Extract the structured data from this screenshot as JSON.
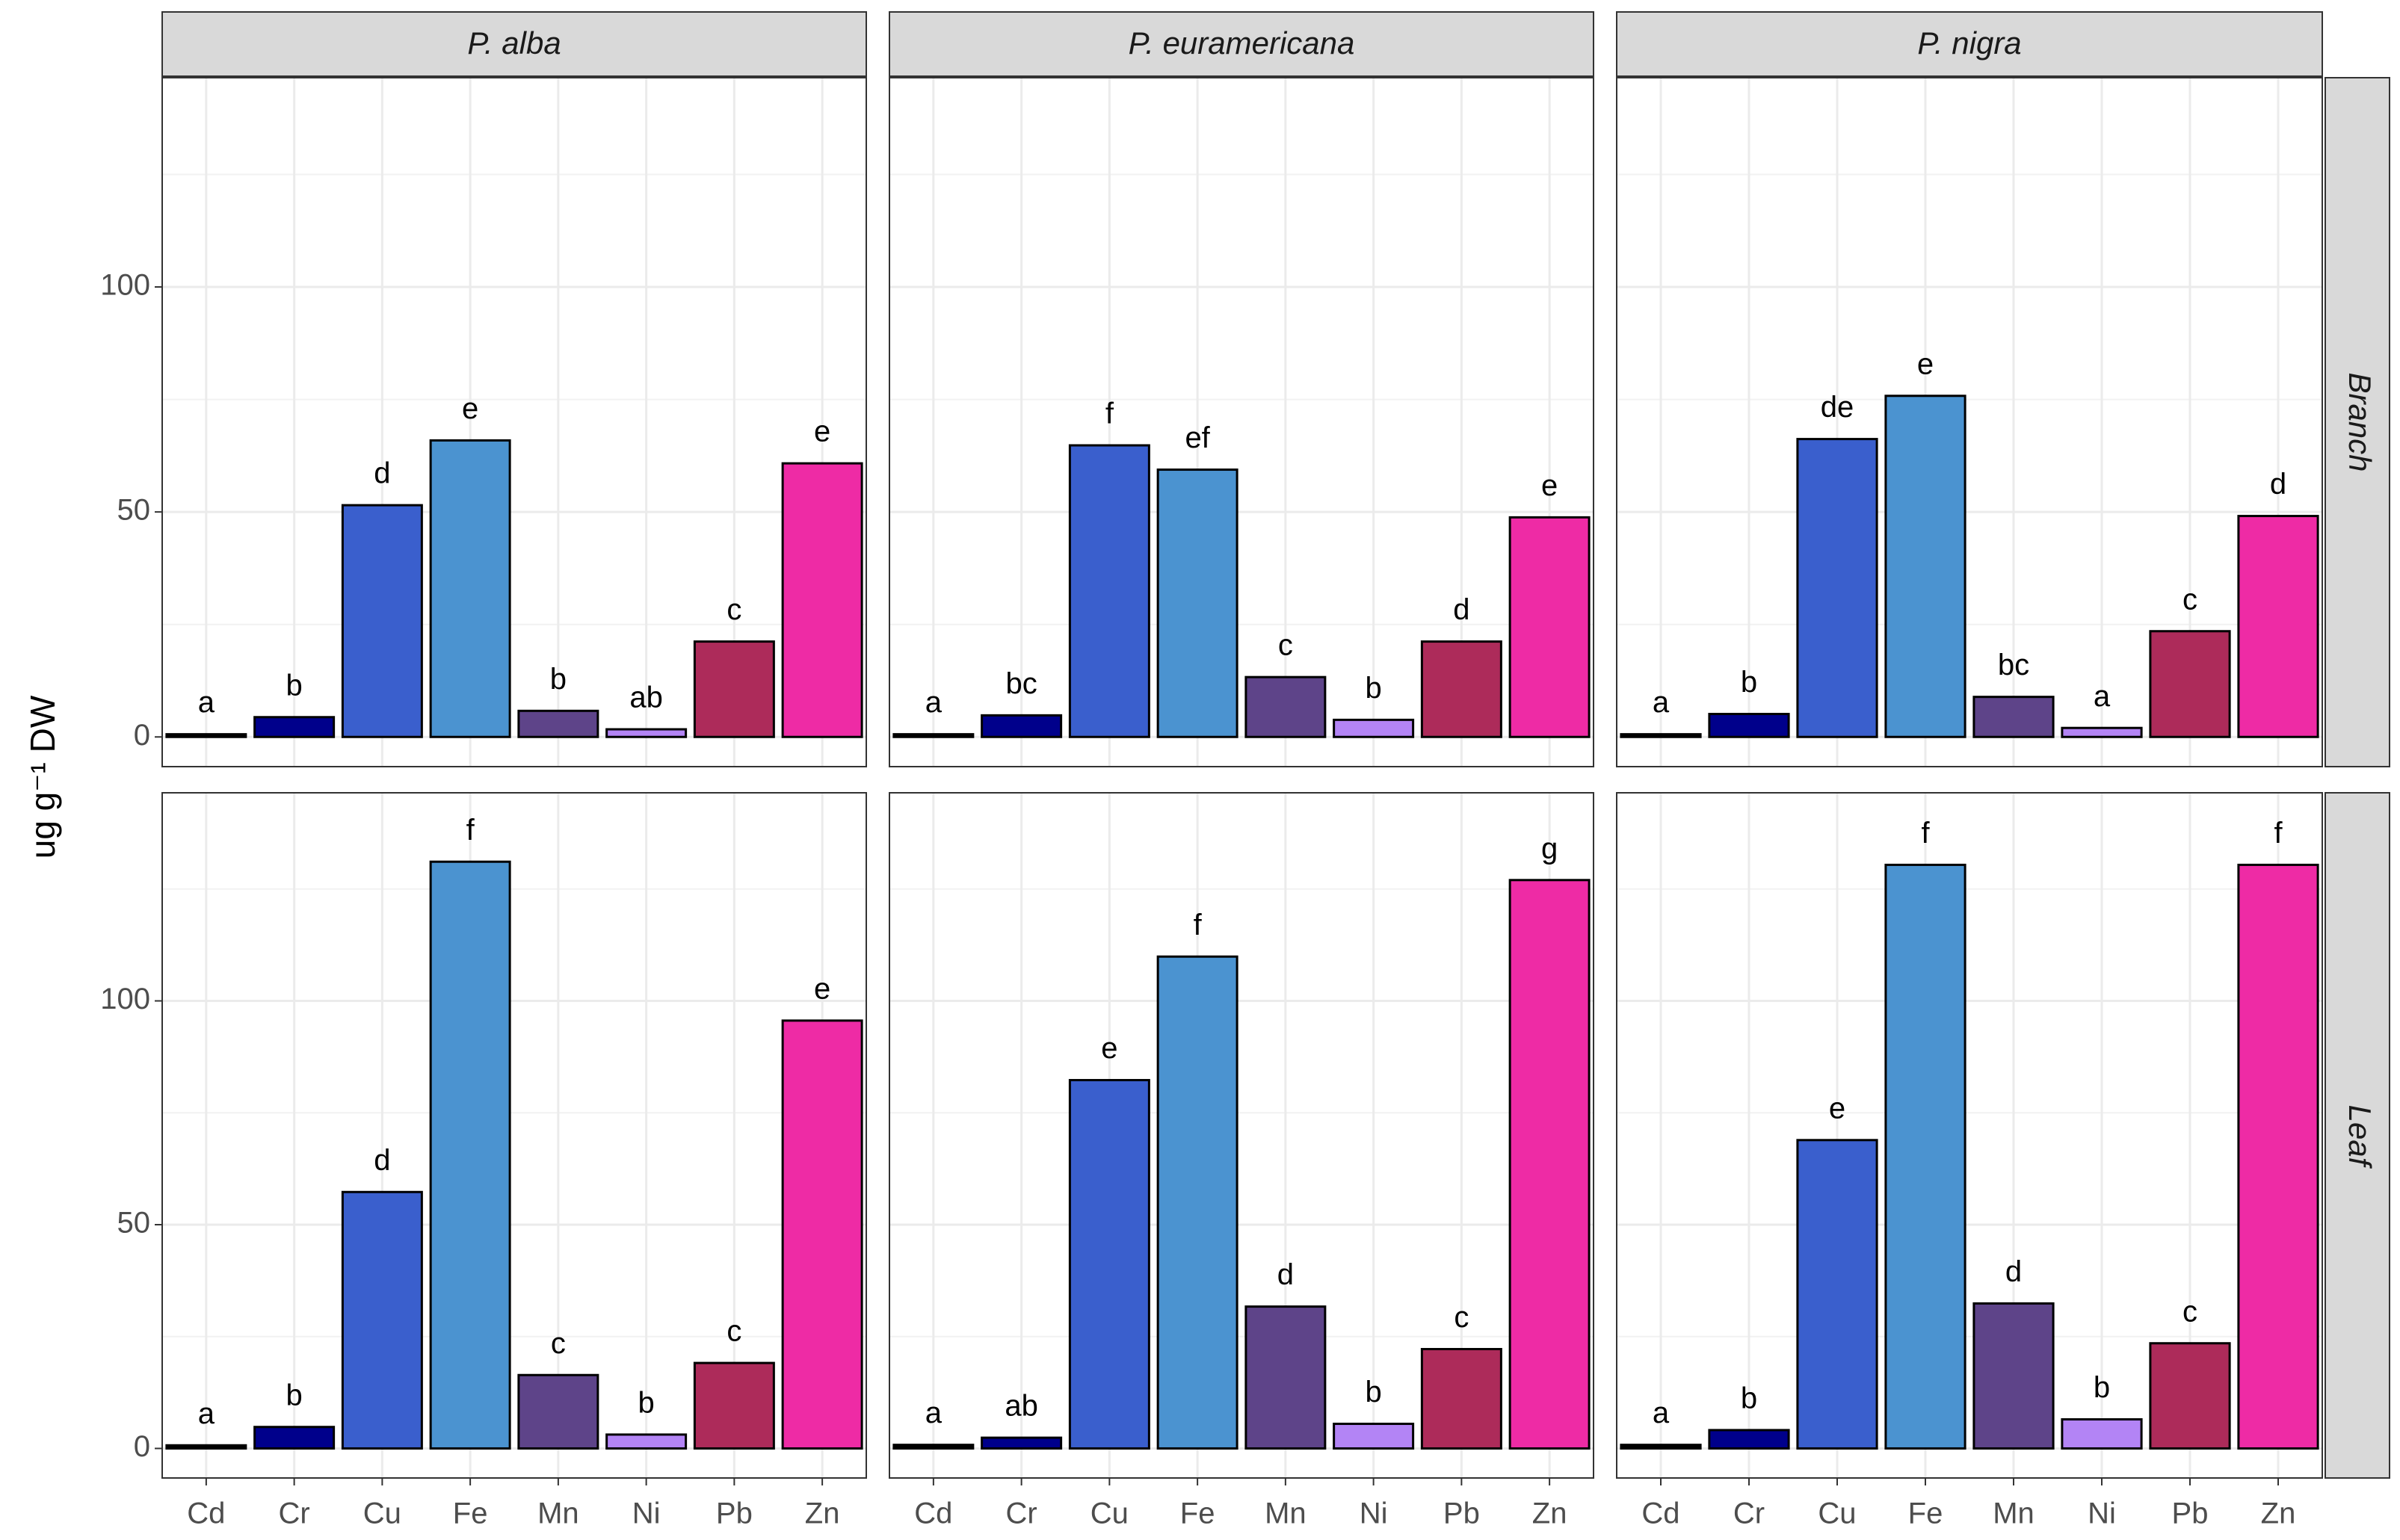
{
  "chart_data": {
    "type": "bar",
    "ylabel": "ug g⁻¹ DW",
    "categories": [
      "Cd",
      "Cr",
      "Cu",
      "Fe",
      "Mn",
      "Ni",
      "Pb",
      "Zn"
    ],
    "colors": [
      "#000000",
      "#00008b",
      "#3a5fcd",
      "#4b93d0",
      "#5e4489",
      "#b384f5",
      "#ad2b5a",
      "#ee2ba5"
    ],
    "columns": [
      "P. alba",
      "P. euramericana",
      "P. nigra"
    ],
    "ylim": [
      -6.6,
      146.5
    ],
    "yticks": [
      0,
      50,
      100
    ],
    "minor_yticks": [
      25,
      75,
      125
    ],
    "grid": true,
    "rows": [
      {
        "name": "Branch",
        "panels": [
          {
            "values": [
              0.6,
              4.4,
              51.5,
              65.9,
              5.8,
              1.7,
              21.2,
              60.8
            ],
            "letters": [
              "a",
              "b",
              "d",
              "e",
              "b",
              "ab",
              "c",
              "e"
            ]
          },
          {
            "values": [
              0.6,
              4.8,
              64.8,
              59.4,
              13.3,
              3.8,
              21.2,
              48.8
            ],
            "letters": [
              "a",
              "bc",
              "f",
              "ef",
              "c",
              "b",
              "d",
              "e"
            ]
          },
          {
            "values": [
              0.6,
              5.1,
              66.2,
              75.8,
              8.9,
              2.0,
              23.5,
              49.1
            ],
            "letters": [
              "a",
              "b",
              "de",
              "e",
              "bc",
              "a",
              "c",
              "d"
            ]
          }
        ]
      },
      {
        "name": "Leaf",
        "panels": [
          {
            "values": [
              0.7,
              4.8,
              57.3,
              131.1,
              16.4,
              3.1,
              19.1,
              95.6
            ],
            "letters": [
              "a",
              "b",
              "d",
              "f",
              "c",
              "b",
              "c",
              "e"
            ]
          },
          {
            "values": [
              0.8,
              2.4,
              82.3,
              109.9,
              31.7,
              5.5,
              22.2,
              127.0
            ],
            "letters": [
              "a",
              "ab",
              "e",
              "f",
              "d",
              "b",
              "c",
              "g"
            ]
          },
          {
            "values": [
              0.8,
              4.1,
              68.9,
              130.4,
              32.4,
              6.5,
              23.5,
              130.4
            ],
            "letters": [
              "a",
              "b",
              "e",
              "f",
              "d",
              "b",
              "c",
              "f"
            ]
          }
        ]
      }
    ]
  }
}
